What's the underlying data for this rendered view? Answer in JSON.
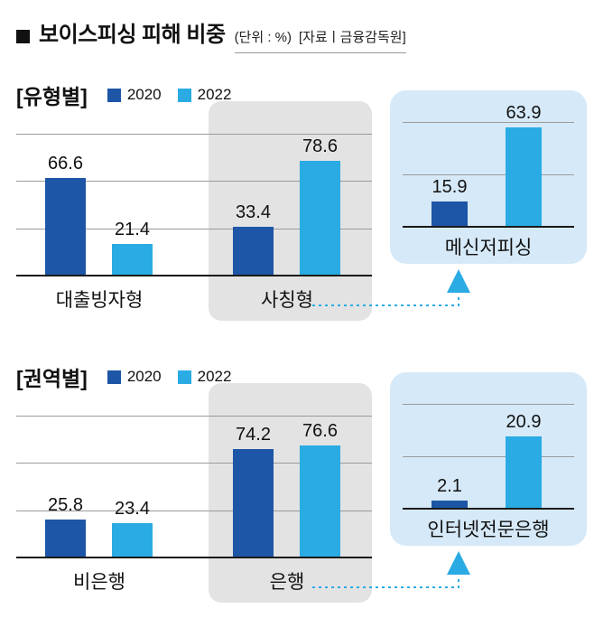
{
  "header": {
    "title": "보이스피싱 피해 비중",
    "unit": "(단위 : %)",
    "source": "[자료ㅣ금융감독원]"
  },
  "colors": {
    "c2020": "#1d56a6",
    "c2022": "#2aabe4",
    "calloutBg": "#d6e9f8",
    "grayBg": "#e3e3e3",
    "grid": "#9a9a9a",
    "baseline": "#1a1a1a",
    "arrow": "#2aabe4"
  },
  "chart_data": [
    {
      "type": "bar",
      "section_label": "[유형별]",
      "unit": "%",
      "categories": [
        "대출빙자형",
        "사칭형"
      ],
      "series": [
        {
          "name": "2020",
          "color": "#1d56a6",
          "values": [
            66.6,
            33.4
          ]
        },
        {
          "name": "2022",
          "color": "#2aabe4",
          "values": [
            21.4,
            78.6
          ]
        }
      ],
      "highlighted_category": "사칭형",
      "callout": {
        "category": "메신저피싱",
        "series": [
          {
            "name": "2020",
            "value": 15.9
          },
          {
            "name": "2022",
            "value": 63.9
          }
        ]
      },
      "legend_position": "top",
      "grid": true,
      "ylim": [
        0,
        100
      ]
    },
    {
      "type": "bar",
      "section_label": "[권역별]",
      "unit": "%",
      "categories": [
        "비은행",
        "은행"
      ],
      "series": [
        {
          "name": "2020",
          "color": "#1d56a6",
          "values": [
            25.8,
            74.2
          ]
        },
        {
          "name": "2022",
          "color": "#2aabe4",
          "values": [
            23.4,
            76.6
          ]
        }
      ],
      "highlighted_category": "은행",
      "callout": {
        "category": "인터넷전문은행",
        "series": [
          {
            "name": "2020",
            "value": 2.1
          },
          {
            "name": "2022",
            "value": 20.9
          }
        ]
      },
      "legend_position": "top",
      "grid": true,
      "ylim": [
        0,
        100
      ]
    }
  ]
}
